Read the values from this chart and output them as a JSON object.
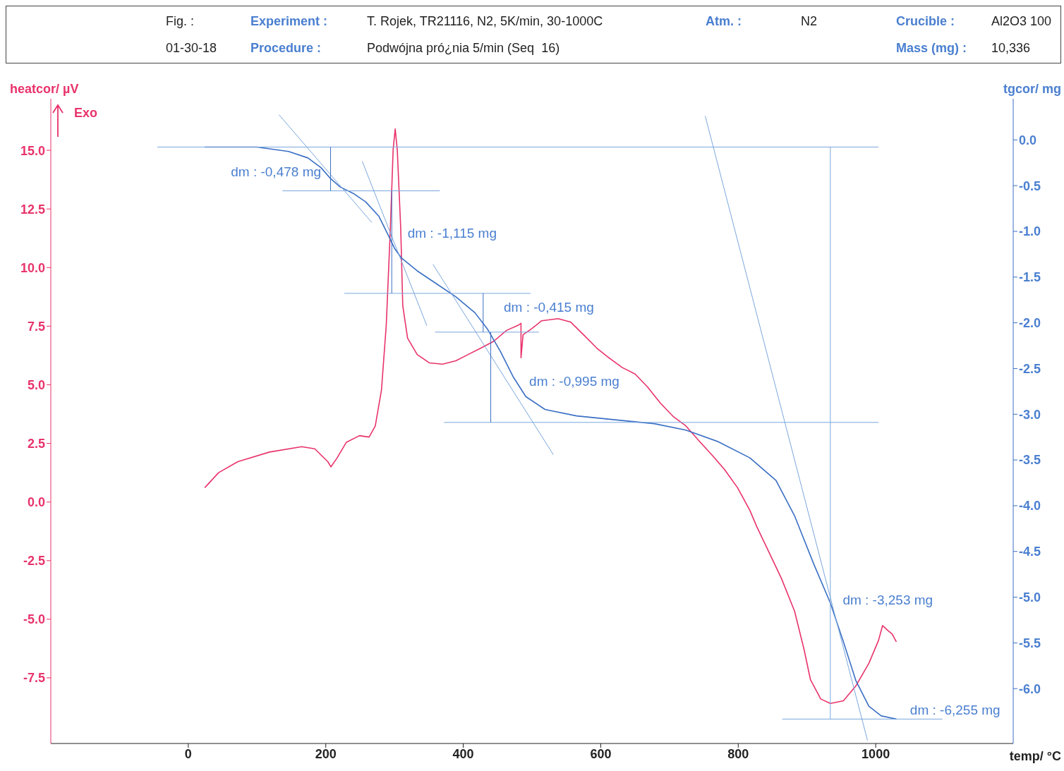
{
  "chart_data": {
    "type": "line",
    "xlabel": "temp/ °C",
    "ylabel": "heatcor/ µV",
    "y2label": "tgcor/ mg",
    "xlim": [
      -200,
      1200
    ],
    "xticks": [
      0,
      200,
      400,
      600,
      800,
      1000
    ],
    "ylim": [
      -10.3,
      17.2
    ],
    "yticks": [
      {
        "value": -7.5,
        "label": "-7.5"
      },
      {
        "value": -5,
        "label": "-5.0"
      },
      {
        "value": -2.5,
        "label": "-2.5"
      },
      {
        "value": 0,
        "label": "0.0"
      },
      {
        "value": 2.5,
        "label": "2.5"
      },
      {
        "value": 5,
        "label": "5.0"
      },
      {
        "value": 7.5,
        "label": "7.5"
      },
      {
        "value": 10,
        "label": "10.0"
      },
      {
        "value": 12.5,
        "label": "12.5"
      },
      {
        "value": 15,
        "label": "15.0"
      }
    ],
    "y2lim": [
      -6.6,
      0.45
    ],
    "y2ticks": [
      {
        "value": 0,
        "label": "0.0"
      },
      -0.5,
      {
        "value": -1,
        "label": "-1.0"
      },
      -1.5,
      {
        "value": -2,
        "label": "-2.0"
      },
      -2.5,
      {
        "value": -3,
        "label": "-3.0"
      },
      -3.5,
      {
        "value": -4,
        "label": "-4.0"
      },
      -4.5,
      {
        "value": -5,
        "label": "-5.0"
      },
      -5.5,
      {
        "value": -6,
        "label": "-6.0"
      }
    ],
    "marker": "none",
    "line_style": "solid",
    "grid": false,
    "series": [
      {
        "color": "#e8336b",
        "x": [
          24,
          44,
          72,
          118,
          165,
          184,
          203,
          207.5,
          216,
          230,
          249,
          263,
          272,
          281,
          288,
          294,
          298,
          301,
          304,
          309,
          312,
          319,
          333,
          351,
          370,
          389,
          407,
          426,
          444,
          463,
          480,
          484,
          484,
          487,
          500,
          514,
          538,
          556,
          575,
          594,
          612,
          631,
          650,
          668,
          687,
          705,
          724,
          743,
          762,
          780,
          799,
          817,
          827,
          845,
          863,
          882,
          896,
          905,
          920,
          934,
          953,
          971,
          990,
          1004,
          1010,
          1018,
          1024,
          1030
        ],
        "values": [
          0.61,
          1.25,
          1.72,
          2.13,
          2.36,
          2.27,
          1.72,
          1.5,
          1.86,
          2.55,
          2.83,
          2.77,
          3.24,
          4.77,
          7.54,
          11.7,
          15.03,
          15.91,
          15.03,
          11.7,
          8.37,
          6.99,
          6.29,
          5.93,
          5.88,
          6.02,
          6.29,
          6.57,
          6.85,
          7.32,
          7.54,
          7.62,
          6.15,
          7.13,
          7.4,
          7.73,
          7.82,
          7.68,
          7.13,
          6.57,
          6.15,
          5.74,
          5.46,
          4.91,
          4.21,
          3.66,
          3.24,
          2.61,
          2.0,
          1.39,
          0.61,
          -0.36,
          -1.05,
          -2.16,
          -3.27,
          -4.66,
          -6.32,
          -7.57,
          -8.4,
          -8.59,
          -8.48,
          -7.85,
          -6.88,
          -5.91,
          -5.27,
          -5.49,
          -5.63,
          -5.96
        ]
      },
      {
        "color": "#3a6fc4",
        "axis": "y2",
        "x": [
          24,
          100,
          146,
          174,
          193,
          207,
          221,
          240,
          258,
          277,
          291,
          300,
          310,
          333,
          361,
          389,
          417,
          435,
          454,
          473,
          491,
          519,
          565,
          631,
          678,
          724,
          771,
          817,
          855,
          882,
          910,
          934,
          953,
          971,
          990,
          1008,
          1030
        ],
        "values": [
          -0.078,
          -0.078,
          -0.127,
          -0.197,
          -0.303,
          -0.423,
          -0.515,
          -0.585,
          -0.677,
          -0.832,
          -1.044,
          -1.185,
          -1.291,
          -1.432,
          -1.573,
          -1.714,
          -1.89,
          -2.066,
          -2.313,
          -2.595,
          -2.807,
          -2.948,
          -3.018,
          -3.068,
          -3.103,
          -3.173,
          -3.3,
          -3.477,
          -3.724,
          -4.111,
          -4.64,
          -5.063,
          -5.487,
          -5.91,
          -6.192,
          -6.298,
          -6.333
        ]
      },
      {
        "color": "#7aa6dc",
        "axis": "y2",
        "x": [
          -45,
          1004
        ],
        "values": [
          -0.078,
          -0.078
        ]
      },
      {
        "color": "#7aa6dc",
        "axis": "y2",
        "x": [
          137,
          366
        ],
        "values": [
          -0.557,
          -0.557
        ]
      },
      {
        "color": "#7aa6dc",
        "axis": "y2",
        "x": [
          227,
          498
        ],
        "values": [
          -1.678,
          -1.678
        ]
      },
      {
        "color": "#7aa6dc",
        "axis": "y2",
        "x": [
          359,
          510
        ],
        "values": [
          -2.102,
          -2.102
        ]
      },
      {
        "color": "#7aa6dc",
        "axis": "y2",
        "x": [
          372,
          1004
        ],
        "values": [
          -3.089,
          -3.089
        ]
      },
      {
        "color": "#7aa6dc",
        "axis": "y2",
        "x": [
          864,
          1097
        ],
        "values": [
          -6.333,
          -6.333
        ]
      },
      {
        "color": "#7aa6dc",
        "axis": "y2",
        "x": [
          132,
          267
        ],
        "values": [
          0.275,
          -0.903
        ]
      },
      {
        "color": "#7aa6dc",
        "axis": "y2",
        "x": [
          253,
          347
        ],
        "values": [
          -0.233,
          -2.031
        ]
      },
      {
        "color": "#7aa6dc",
        "axis": "y2",
        "x": [
          356,
          531
        ],
        "values": [
          -1.361,
          -3.441
        ]
      },
      {
        "color": "#7aa6dc",
        "axis": "y2",
        "x": [
          752,
          988
        ],
        "values": [
          0.261,
          -6.566
        ]
      },
      {
        "color": "#3a6fc4",
        "axis": "y2",
        "x": [
          207,
          207
        ],
        "values": [
          -0.078,
          -0.557
        ]
      },
      {
        "color": "#3a6fc4",
        "axis": "y2",
        "x": [
          296,
          296
        ],
        "values": [
          -0.557,
          -1.678
        ]
      },
      {
        "color": "#3a6fc4",
        "axis": "y2",
        "x": [
          429,
          429
        ],
        "values": [
          -1.678,
          -2.102
        ]
      },
      {
        "color": "#3a6fc4",
        "axis": "y2",
        "x": [
          440,
          440
        ],
        "values": [
          -2.102,
          -3.089
        ]
      },
      {
        "color": "#7aa6dc",
        "axis": "y2",
        "x": [
          934,
          934
        ],
        "values": [
          -0.078,
          -6.333
        ]
      }
    ],
    "annotations": [
      "Fig. :",
      "01-30-18",
      "Experiment :",
      "T. Rojek, TR21116, N2, 5K/min, 30-1000C",
      "Atm. :",
      "N2",
      "Procedure :",
      "Podwójna pró¿nia 5/min (Seq  16)",
      "Crucible :",
      "Al2O3 100",
      "Mass (mg) :",
      "10,336",
      "Exo",
      "dm : -0,478 mg",
      "dm : -1,115 mg",
      "dm : -0,415 mg",
      "dm : -0,995 mg",
      "dm : -3,253 mg",
      "dm : -6,255 mg"
    ]
  }
}
